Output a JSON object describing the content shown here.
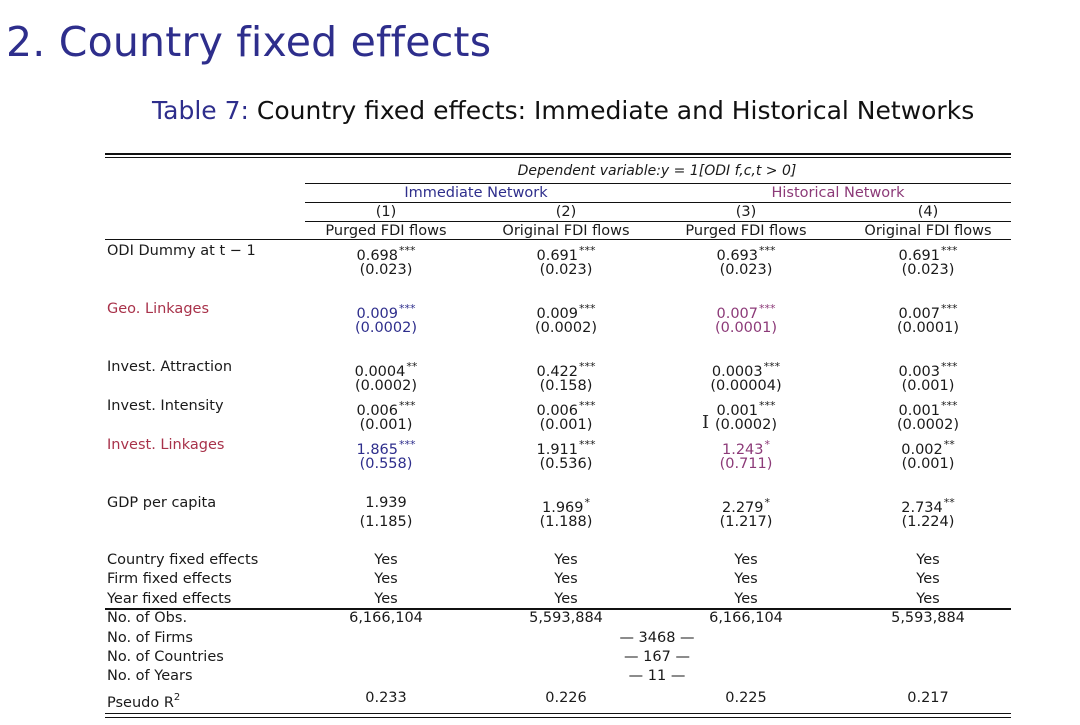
{
  "slide": {
    "title": "2. Country fixed effects",
    "caption_label": "Table 7:",
    "caption_text": "Country fixed effects: Immediate and Historical Networks"
  },
  "table": {
    "dependent_variable": "Dependent variable:y = 1[ODI f,c,t > 0]",
    "groups": [
      "Immediate Network",
      "Historical Network"
    ],
    "columns": [
      {
        "num": "(1)",
        "label": "Purged FDI flows"
      },
      {
        "num": "(2)",
        "label": "Original FDI flows"
      },
      {
        "num": "(3)",
        "label": "Purged FDI flows"
      },
      {
        "num": "(4)",
        "label": "Original FDI flows"
      }
    ],
    "rows": [
      {
        "label": "ODI Dummy at t − 1",
        "coef": [
          [
            "0.698",
            "***"
          ],
          [
            "0.691",
            "***"
          ],
          [
            "0.693",
            "***"
          ],
          [
            "0.691",
            "***"
          ]
        ],
        "se": [
          "(0.023)",
          "(0.023)",
          "(0.023)",
          "(0.023)"
        ]
      },
      {
        "label": "Geo. Linkages",
        "coef": [
          [
            "0.009",
            "***"
          ],
          [
            "0.009",
            "***"
          ],
          [
            "0.007",
            "***"
          ],
          [
            "0.007",
            "***"
          ]
        ],
        "se": [
          "(0.0002)",
          "(0.0002)",
          "(0.0001)",
          "(0.0001)"
        ]
      },
      {
        "label": "Invest. Attraction",
        "coef": [
          [
            "0.0004",
            "**"
          ],
          [
            "0.422",
            "***"
          ],
          [
            "0.0003",
            "***"
          ],
          [
            "0.003",
            "***"
          ]
        ],
        "se": [
          "(0.0002)",
          "(0.158)",
          "(0.00004)",
          "(0.001)"
        ]
      },
      {
        "label": "Invest. Intensity",
        "coef": [
          [
            "0.006",
            "***"
          ],
          [
            "0.006",
            "***"
          ],
          [
            "0.001",
            "***"
          ],
          [
            "0.001",
            "***"
          ]
        ],
        "se": [
          "(0.001)",
          "(0.001)",
          "(0.0002)",
          "(0.0002)"
        ]
      },
      {
        "label": "Invest. Linkages",
        "coef": [
          [
            "1.865",
            "***"
          ],
          [
            "1.911",
            "***"
          ],
          [
            "1.243",
            "*"
          ],
          [
            "0.002",
            "**"
          ]
        ],
        "se": [
          "(0.558)",
          "(0.536)",
          "(0.711)",
          "(0.001)"
        ]
      },
      {
        "label": "GDP per capita",
        "coef": [
          [
            "1.939",
            ""
          ],
          [
            "1.969",
            "*"
          ],
          [
            "2.279",
            "*"
          ],
          [
            "2.734",
            "**"
          ]
        ],
        "se": [
          "(1.185)",
          "(1.188)",
          "(1.217)",
          "(1.224)"
        ]
      }
    ],
    "fixed_effects": [
      {
        "label": "Country fixed effects",
        "values": [
          "Yes",
          "Yes",
          "Yes",
          "Yes"
        ]
      },
      {
        "label": "Firm fixed effects",
        "values": [
          "Yes",
          "Yes",
          "Yes",
          "Yes"
        ]
      },
      {
        "label": "Year fixed effects",
        "values": [
          "Yes",
          "Yes",
          "Yes",
          "Yes"
        ]
      }
    ],
    "stats": {
      "obs_label": "No. of Obs.",
      "obs": [
        "6,166,104",
        "5,593,884",
        "6,166,104",
        "5,593,884"
      ],
      "firms_label": "No. of Firms",
      "firms": "— 3468 —",
      "countries_label": "No. of Countries",
      "countries": "— 167 —",
      "years_label": "No. of Years",
      "years": "— 11 —",
      "r2_label": "Pseudo R",
      "r2_sup": "2",
      "r2": [
        "0.233",
        "0.226",
        "0.225",
        "0.217"
      ]
    }
  },
  "colors": {
    "title_blue": "#2e2e8c",
    "highlight_red": "#a8324a",
    "highlight_mauve": "#8c3a78"
  }
}
